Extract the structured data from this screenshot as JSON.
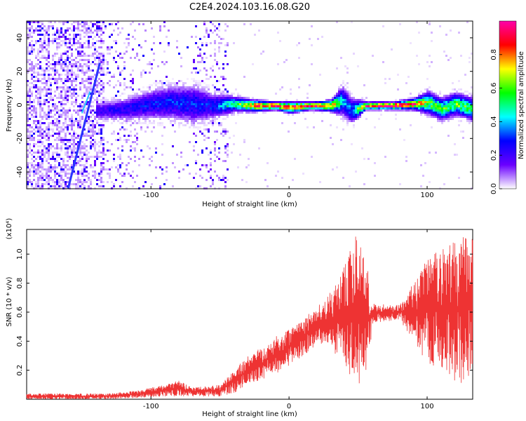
{
  "title": "C2E4.2024.103.16.08.G20",
  "chart_data": [
    {
      "type": "heatmap",
      "xlabel": "Height of straight line (km)",
      "ylabel": "Frequency (Hz)",
      "xlim": [
        -190,
        133
      ],
      "ylim": [
        -50,
        50
      ],
      "xticks": [
        -100,
        0,
        100
      ],
      "yticks": [
        -40,
        -20,
        0,
        20,
        40
      ],
      "colorbar": {
        "label": "Normalized spectral amplitude",
        "range": [
          0,
          1
        ],
        "ticks": [
          0.0,
          0.2,
          0.4,
          0.6,
          0.8
        ],
        "colors": [
          "#ffffff",
          "#6a00ff",
          "#0000ff",
          "#00ffff",
          "#00ff00",
          "#ffff00",
          "#ff0000",
          "#ff00aa"
        ]
      },
      "ridge": [
        {
          "x": -135,
          "f": -3,
          "a": 0.22,
          "spread": 5
        },
        {
          "x": -120,
          "f": -2,
          "a": 0.25,
          "spread": 6
        },
        {
          "x": -100,
          "f": 1,
          "a": 0.28,
          "spread": 8
        },
        {
          "x": -85,
          "f": 2,
          "a": 0.3,
          "spread": 9
        },
        {
          "x": -70,
          "f": 1,
          "a": 0.3,
          "spread": 10
        },
        {
          "x": -55,
          "f": 0,
          "a": 0.28,
          "spread": 7
        },
        {
          "x": -40,
          "f": 1,
          "a": 0.55,
          "spread": 4
        },
        {
          "x": -25,
          "f": 0,
          "a": 0.8,
          "spread": 3
        },
        {
          "x": -10,
          "f": 0,
          "a": 0.95,
          "spread": 2
        },
        {
          "x": 0,
          "f": -1,
          "a": 0.9,
          "spread": 3
        },
        {
          "x": 15,
          "f": 0,
          "a": 0.95,
          "spread": 2
        },
        {
          "x": 30,
          "f": 0,
          "a": 0.8,
          "spread": 3
        },
        {
          "x": 38,
          "f": 3,
          "a": 0.4,
          "spread": 8
        },
        {
          "x": 45,
          "f": -3,
          "a": 0.35,
          "spread": 7
        },
        {
          "x": 55,
          "f": 0,
          "a": 0.9,
          "spread": 2
        },
        {
          "x": 75,
          "f": 0,
          "a": 0.95,
          "spread": 2
        },
        {
          "x": 90,
          "f": 1,
          "a": 0.85,
          "spread": 3
        },
        {
          "x": 100,
          "f": 2,
          "a": 0.6,
          "spread": 6
        },
        {
          "x": 110,
          "f": -2,
          "a": 0.55,
          "spread": 6
        },
        {
          "x": 120,
          "f": 1,
          "a": 0.6,
          "spread": 6
        },
        {
          "x": 133,
          "f": -2,
          "a": 0.55,
          "spread": 6
        }
      ],
      "diagonal_streak": {
        "x": [
          -160,
          -137
        ],
        "f": [
          -50,
          25
        ]
      }
    },
    {
      "type": "line",
      "xlabel": "Height of straight line (km)",
      "ylabel": "SNR (10 * v/v)",
      "multiplier": "(x10⁴)",
      "xlim": [
        -190,
        133
      ],
      "ylim": [
        0,
        1.17
      ],
      "xticks": [
        -100,
        0,
        100
      ],
      "yticks": [
        0.2,
        0.4,
        0.6,
        0.8,
        1.0
      ],
      "color": "#ee3333",
      "envelope": [
        {
          "x": -190,
          "lo": 0.0,
          "hi": 0.04
        },
        {
          "x": -130,
          "lo": 0.0,
          "hi": 0.04
        },
        {
          "x": -110,
          "lo": 0.01,
          "hi": 0.06
        },
        {
          "x": -90,
          "lo": 0.02,
          "hi": 0.1
        },
        {
          "x": -80,
          "lo": 0.02,
          "hi": 0.13
        },
        {
          "x": -70,
          "lo": 0.02,
          "hi": 0.08
        },
        {
          "x": -50,
          "lo": 0.02,
          "hi": 0.1
        },
        {
          "x": -40,
          "lo": 0.04,
          "hi": 0.2
        },
        {
          "x": -30,
          "lo": 0.1,
          "hi": 0.3
        },
        {
          "x": -15,
          "lo": 0.15,
          "hi": 0.4
        },
        {
          "x": -5,
          "lo": 0.2,
          "hi": 0.46
        },
        {
          "x": 10,
          "lo": 0.3,
          "hi": 0.56
        },
        {
          "x": 25,
          "lo": 0.38,
          "hi": 0.68
        },
        {
          "x": 35,
          "lo": 0.3,
          "hi": 0.8
        },
        {
          "x": 45,
          "lo": 0.15,
          "hi": 1.05
        },
        {
          "x": 50,
          "lo": 0.08,
          "hi": 1.16
        },
        {
          "x": 58,
          "lo": 0.2,
          "hi": 0.9
        },
        {
          "x": 60,
          "lo": 0.52,
          "hi": 0.66
        },
        {
          "x": 80,
          "lo": 0.55,
          "hi": 0.65
        },
        {
          "x": 90,
          "lo": 0.4,
          "hi": 0.8
        },
        {
          "x": 100,
          "lo": 0.25,
          "hi": 1.0
        },
        {
          "x": 115,
          "lo": 0.15,
          "hi": 1.05
        },
        {
          "x": 125,
          "lo": 0.1,
          "hi": 1.13
        },
        {
          "x": 133,
          "lo": 0.08,
          "hi": 1.16
        }
      ]
    }
  ]
}
